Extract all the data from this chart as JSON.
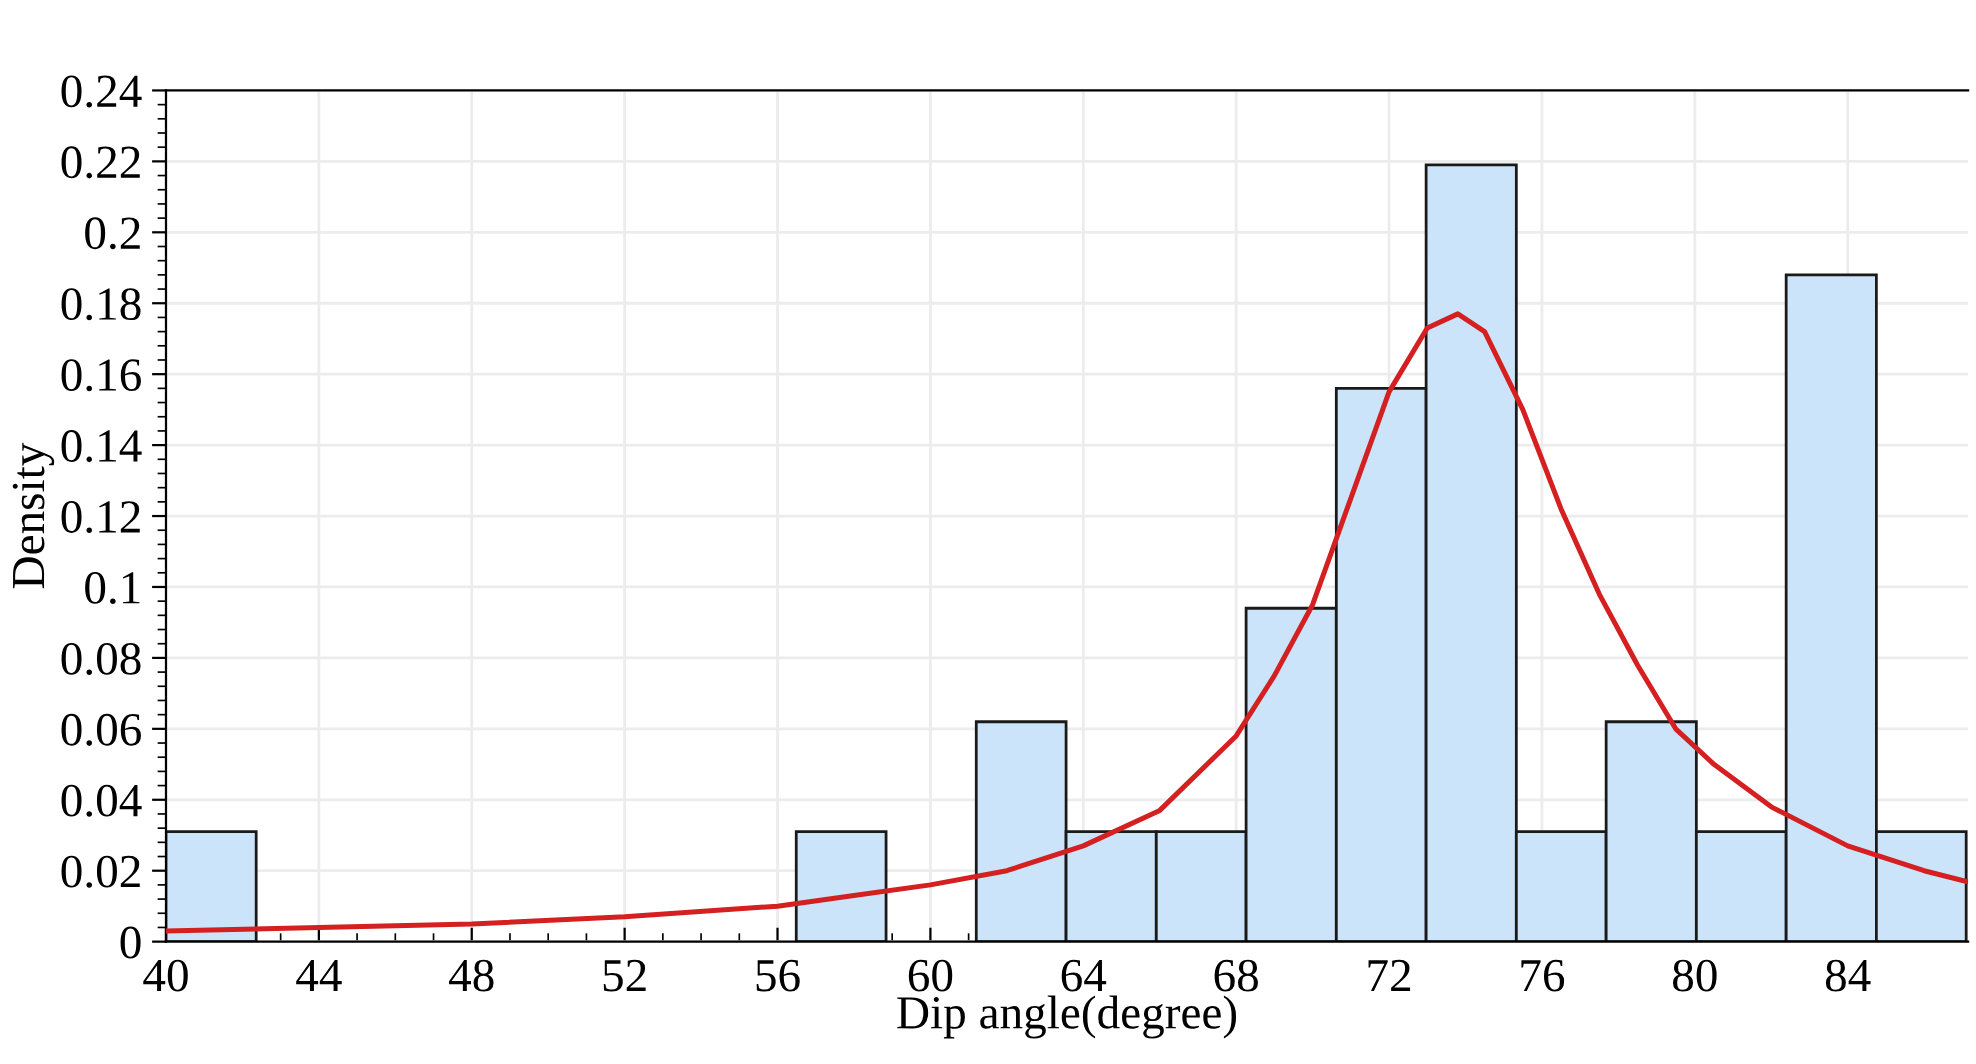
{
  "chart_data": {
    "type": "histogram",
    "xlabel": "Dip angle(degree)",
    "ylabel": "Density",
    "bins": [
      40,
      42.36,
      44.71,
      47.07,
      49.42,
      51.78,
      54.13,
      56.49,
      58.84,
      61.2,
      63.55,
      65.91,
      68.26,
      70.62,
      72.97,
      75.33,
      77.68,
      80.04,
      82.39,
      84.75,
      87.1
    ],
    "values": [
      0.031,
      0,
      0,
      0,
      0,
      0,
      0,
      0.031,
      0,
      0.062,
      0.031,
      0.031,
      0.094,
      0.156,
      0.219,
      0.031,
      0.062,
      0.031,
      0.188,
      0.031
    ],
    "color": "#cce4fa",
    "series": [
      {
        "type": "line",
        "color": "#d42020",
        "x": [
          40,
          44,
          48,
          52,
          56,
          58,
          60,
          62,
          64,
          66,
          68,
          69,
          70,
          71,
          72,
          73,
          73.8,
          74.5,
          75.5,
          76.5,
          77.5,
          78.5,
          79.5,
          80.5,
          82,
          84,
          86,
          87.1
        ],
        "values": [
          0.003,
          0.004,
          0.005,
          0.007,
          0.01,
          0.013,
          0.016,
          0.02,
          0.027,
          0.037,
          0.058,
          0.075,
          0.095,
          0.125,
          0.155,
          0.173,
          0.177,
          0.172,
          0.15,
          0.122,
          0.098,
          0.078,
          0.06,
          0.05,
          0.038,
          0.027,
          0.02,
          0.017
        ]
      }
    ],
    "xlim": [
      40,
      87.15
    ],
    "xticks": [
      40,
      44,
      48,
      52,
      56,
      60,
      64,
      68,
      72,
      76,
      80,
      84
    ],
    "ylim": [
      0,
      0.24
    ],
    "yticks": [
      0,
      0.02,
      0.04,
      0.06,
      0.08,
      0.1,
      0.12,
      0.14,
      0.16,
      0.18,
      0.2,
      0.22,
      0.24
    ],
    "grid": true
  }
}
